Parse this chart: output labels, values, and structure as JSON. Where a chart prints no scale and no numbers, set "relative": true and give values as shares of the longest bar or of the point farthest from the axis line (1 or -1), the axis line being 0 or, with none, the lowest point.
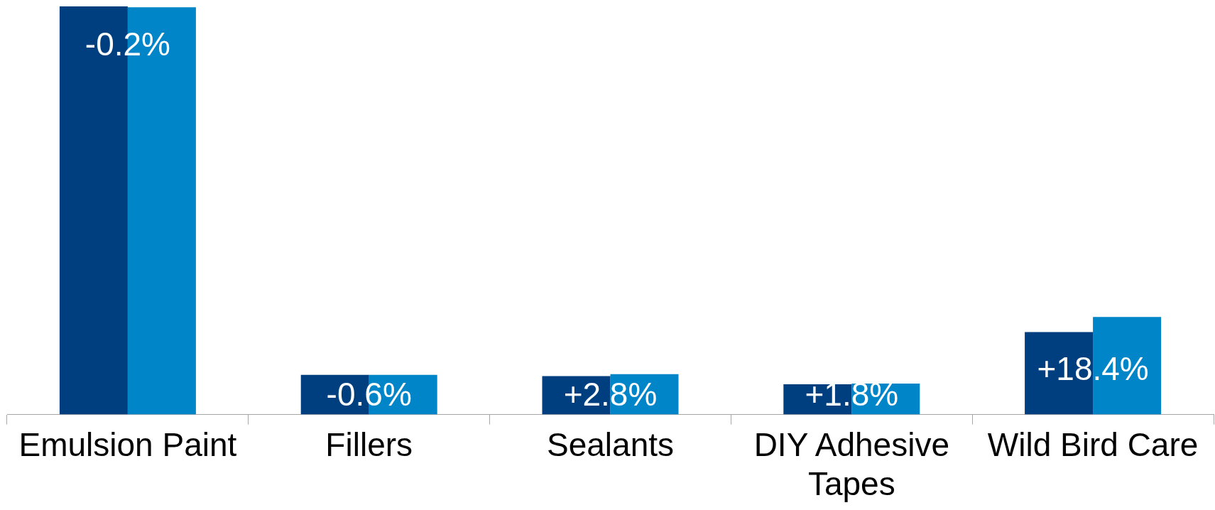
{
  "chart_data": {
    "type": "bar",
    "relative": true,
    "categories": [
      "Emulsion Paint",
      "Fillers",
      "Sealants",
      "DIY Adhesive Tapes",
      "Wild Bird Care"
    ],
    "series": [
      {
        "color": "#003f7f",
        "values": [
          1.0,
          0.097,
          0.094,
          0.074,
          0.202
        ]
      },
      {
        "color": "#0085c8",
        "values": [
          0.998,
          0.097,
          0.099,
          0.076,
          0.239
        ]
      }
    ],
    "annotations": [
      {
        "text": "-0.2%",
        "x": "Emulsion Paint",
        "y": 0.998
      },
      {
        "text": "-0.6%",
        "x": "Fillers",
        "y": 0.097
      },
      {
        "text": "+2.8%",
        "x": "Sealants",
        "y": 0.094
      },
      {
        "text": "+1.8%",
        "x": "DIY Adhesive Tapes",
        "y": 0.074
      },
      {
        "text": "+18.4%",
        "x": "Wild Bird Care",
        "y": 0.202
      }
    ],
    "grid": false,
    "legend": false
  }
}
